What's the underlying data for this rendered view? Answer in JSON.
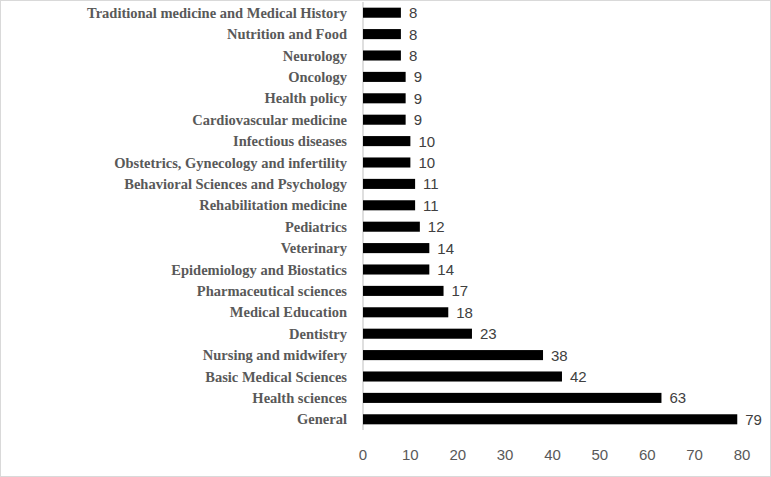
{
  "chart_data": {
    "type": "bar",
    "orientation": "horizontal",
    "categories": [
      "Traditional medicine and Medical History",
      "Nutrition and Food",
      "Neurology",
      "Oncology",
      "Health policy",
      "Cardiovascular medicine",
      "Infectious diseases",
      "Obstetrics, Gynecology and infertility",
      "Behavioral Sciences and Psychology",
      "Rehabilitation medicine",
      "Pediatrics",
      "Veterinary",
      "Epidemiology and Biostatics",
      "Pharmaceutical sciences",
      "Medical Education",
      "Dentistry",
      "Nursing and midwifery",
      "Basic Medical Sciences",
      "Health sciences",
      "General"
    ],
    "values": [
      8,
      8,
      8,
      9,
      9,
      9,
      10,
      10,
      11,
      11,
      12,
      14,
      14,
      17,
      18,
      23,
      38,
      42,
      63,
      79
    ],
    "color": "#000000",
    "xlim": [
      0,
      80
    ],
    "xticks": [
      0,
      10,
      20,
      30,
      40,
      50,
      60,
      70,
      80
    ],
    "grid": false,
    "data_labels": true
  }
}
